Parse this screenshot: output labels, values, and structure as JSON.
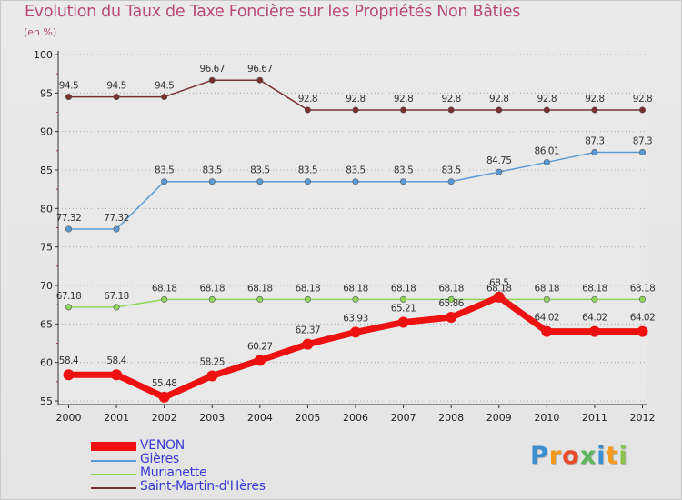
{
  "chart_data": {
    "type": "line",
    "title": "Evolution du Taux de Taxe Foncière sur les Propriétés Non Bâties",
    "subtitle": "(en %)",
    "xlabel": "",
    "ylabel": "",
    "categories": [
      "2000",
      "2001",
      "2002",
      "2003",
      "2004",
      "2005",
      "2006",
      "2007",
      "2008",
      "2009",
      "2010",
      "2011",
      "2012"
    ],
    "ylim": [
      55,
      100
    ],
    "yticks": [
      55,
      60,
      65,
      70,
      75,
      80,
      85,
      90,
      95,
      100
    ],
    "grid": "horizontal-dotted",
    "series": [
      {
        "name": "Saint-Martin-d'Hères",
        "color": "#7a3030",
        "values": [
          94.5,
          94.5,
          94.5,
          96.67,
          96.67,
          92.8,
          92.8,
          92.8,
          92.8,
          92.8,
          92.8,
          92.8,
          92.8
        ],
        "labels": [
          "94.5",
          "94.5",
          "94.5",
          "96.67",
          "96.67",
          "92.8",
          "92.8",
          "92.8",
          "92.8",
          "92.8",
          "92.8",
          "92.8",
          "92.8"
        ]
      },
      {
        "name": "Gières",
        "color": "#5b9bd5",
        "values": [
          77.32,
          77.32,
          83.5,
          83.5,
          83.5,
          83.5,
          83.5,
          83.5,
          83.5,
          84.75,
          86.01,
          87.3,
          87.3
        ],
        "labels": [
          "77.32",
          "77.32",
          "83.5",
          "83.5",
          "83.5",
          "83.5",
          "83.5",
          "83.5",
          "83.5",
          "84.75",
          "86.01",
          "87.3",
          "87.3"
        ]
      },
      {
        "name": "Murianette",
        "color": "#8fd65a",
        "values": [
          67.18,
          67.18,
          68.18,
          68.18,
          68.18,
          68.18,
          68.18,
          68.18,
          68.18,
          68.18,
          68.18,
          68.18,
          68.18
        ],
        "labels": [
          "67.18",
          "67.18",
          "68.18",
          "68.18",
          "68.18",
          "68.18",
          "68.18",
          "68.18",
          "68.18",
          "68.18",
          "68.18",
          "68.18",
          "68.18"
        ]
      },
      {
        "name": "VENON",
        "color": "#ee1111",
        "values": [
          58.4,
          58.4,
          55.48,
          58.25,
          60.27,
          62.37,
          63.93,
          65.21,
          65.86,
          68.5,
          64.02,
          64.02,
          64.02
        ],
        "labels": [
          "58.4",
          "58.4",
          "55.48",
          "58.25",
          "60.27",
          "62.37",
          "63.93",
          "65.21",
          "65.86",
          "68.5",
          "64.02",
          "64.02",
          "64.02"
        ]
      }
    ],
    "legend": {
      "placement": "bottom-left",
      "entries": [
        "VENON",
        "Gières",
        "Murianette",
        "Saint-Martin-d'Hères"
      ]
    }
  },
  "brand": {
    "letters": [
      "P",
      "r",
      "o",
      "x",
      "i",
      "t",
      "i"
    ],
    "colors": [
      "#3a8fd0",
      "#f39a1d",
      "#e84b2a",
      "#5cb85c",
      "#3a8fd0",
      "#f39a1d",
      "#8bc34a"
    ]
  }
}
